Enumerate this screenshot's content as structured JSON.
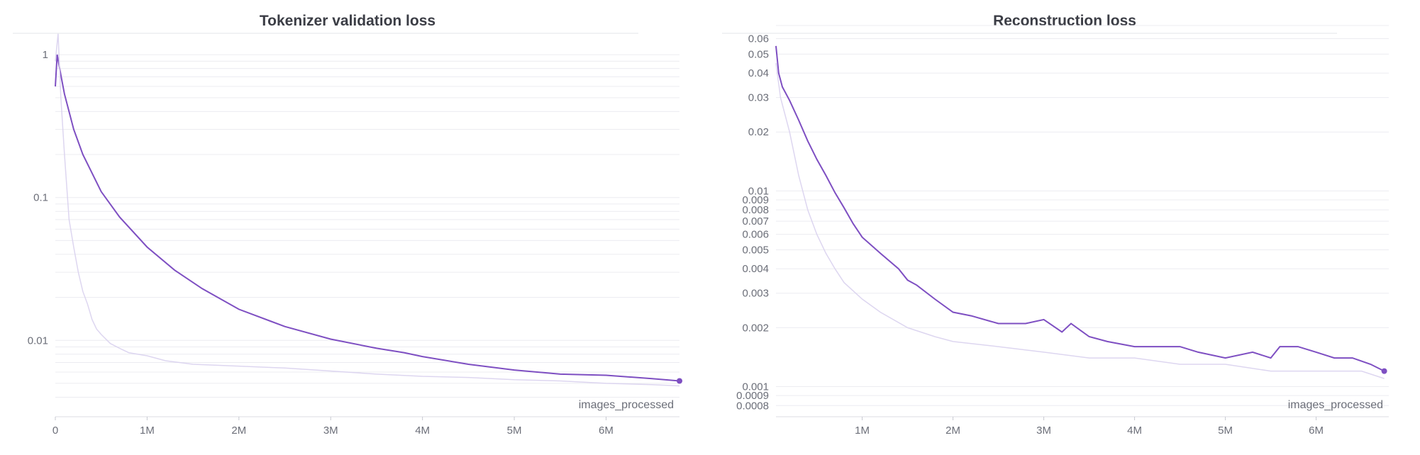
{
  "chart_data": [
    {
      "type": "line",
      "title": "Tokenizer validation loss",
      "xlabel": "images_processed",
      "ylabel": "",
      "yscale": "log",
      "xlim": [
        0,
        6800000
      ],
      "ylim": [
        0.0032,
        1.6
      ],
      "x_ticks": [
        {
          "value": 0,
          "label": "0"
        },
        {
          "value": 1000000,
          "label": "1M"
        },
        {
          "value": 2000000,
          "label": "2M"
        },
        {
          "value": 3000000,
          "label": "3M"
        },
        {
          "value": 4000000,
          "label": "4M"
        },
        {
          "value": 5000000,
          "label": "5M"
        },
        {
          "value": 6000000,
          "label": "6M"
        }
      ],
      "y_ticks": [
        {
          "value": 1,
          "label": "1"
        },
        {
          "value": 0.1,
          "label": "0.1"
        },
        {
          "value": 0.01,
          "label": "0.01"
        }
      ],
      "grid": true,
      "accent_color": "#7e4fc2",
      "raw_color": "#d9d2ee",
      "series": [
        {
          "role": "smoothed",
          "x": [
            0,
            20000,
            60000,
            100000,
            200000,
            300000,
            500000,
            700000,
            1000000,
            1300000,
            1600000,
            2000000,
            2500000,
            3000000,
            3500000,
            3800000,
            4000000,
            4500000,
            5000000,
            5500000,
            6000000,
            6500000,
            6800000
          ],
          "y": [
            0.6,
            1.0,
            0.72,
            0.53,
            0.3,
            0.2,
            0.11,
            0.073,
            0.045,
            0.031,
            0.023,
            0.0165,
            0.0125,
            0.0102,
            0.0088,
            0.0082,
            0.0077,
            0.0068,
            0.0062,
            0.0058,
            0.0057,
            0.0054,
            0.0052
          ]
        },
        {
          "role": "raw",
          "x": [
            0,
            30000,
            60000,
            100000,
            150000,
            200000,
            250000,
            300000,
            350000,
            400000,
            450000,
            500000,
            600000,
            700000,
            800000,
            1000000,
            1200000,
            1500000,
            2000000,
            2500000,
            3000000,
            3500000,
            4000000,
            4500000,
            5000000,
            5500000,
            6000000,
            6500000,
            6800000
          ],
          "y": [
            0.9,
            1.4,
            0.5,
            0.2,
            0.07,
            0.045,
            0.03,
            0.022,
            0.018,
            0.014,
            0.012,
            0.011,
            0.0095,
            0.0088,
            0.0082,
            0.0078,
            0.0072,
            0.0068,
            0.0066,
            0.0064,
            0.0061,
            0.0058,
            0.0056,
            0.0055,
            0.0053,
            0.0052,
            0.005,
            0.0049,
            0.0048
          ]
        }
      ]
    },
    {
      "type": "line",
      "title": "Reconstruction loss",
      "xlabel": "images_processed",
      "ylabel": "",
      "yscale": "log",
      "xlim": [
        50000,
        6800000
      ],
      "ylim": [
        0.00075,
        0.07
      ],
      "x_ticks": [
        {
          "value": 1000000,
          "label": "1M"
        },
        {
          "value": 2000000,
          "label": "2M"
        },
        {
          "value": 3000000,
          "label": "3M"
        },
        {
          "value": 4000000,
          "label": "4M"
        },
        {
          "value": 5000000,
          "label": "5M"
        },
        {
          "value": 6000000,
          "label": "6M"
        }
      ],
      "y_ticks": [
        {
          "value": 0.06,
          "label": "0.06"
        },
        {
          "value": 0.05,
          "label": "0.05"
        },
        {
          "value": 0.04,
          "label": "0.04"
        },
        {
          "value": 0.03,
          "label": "0.03"
        },
        {
          "value": 0.02,
          "label": "0.02"
        },
        {
          "value": 0.01,
          "label": "0.01"
        },
        {
          "value": 0.009,
          "label": "0.009"
        },
        {
          "value": 0.008,
          "label": "0.008"
        },
        {
          "value": 0.007,
          "label": "0.007"
        },
        {
          "value": 0.006,
          "label": "0.006"
        },
        {
          "value": 0.005,
          "label": "0.005"
        },
        {
          "value": 0.004,
          "label": "0.004"
        },
        {
          "value": 0.003,
          "label": "0.003"
        },
        {
          "value": 0.002,
          "label": "0.002"
        },
        {
          "value": 0.001,
          "label": "0.001"
        },
        {
          "value": 0.0009,
          "label": "0.0009"
        },
        {
          "value": 0.0008,
          "label": "0.0008"
        }
      ],
      "grid": true,
      "accent_color": "#7e4fc2",
      "raw_color": "#d9d2ee",
      "series": [
        {
          "role": "smoothed",
          "x": [
            50000,
            80000,
            120000,
            200000,
            300000,
            400000,
            500000,
            600000,
            700000,
            800000,
            900000,
            1000000,
            1200000,
            1400000,
            1500000,
            1600000,
            1800000,
            2000000,
            2200000,
            2500000,
            2800000,
            3000000,
            3200000,
            3300000,
            3500000,
            3700000,
            4000000,
            4200000,
            4500000,
            4700000,
            5000000,
            5300000,
            5500000,
            5600000,
            5800000,
            6000000,
            6200000,
            6400000,
            6600000,
            6750000
          ],
          "y": [
            0.055,
            0.04,
            0.034,
            0.029,
            0.023,
            0.018,
            0.0145,
            0.012,
            0.0098,
            0.0082,
            0.0068,
            0.0058,
            0.0048,
            0.004,
            0.0035,
            0.0033,
            0.0028,
            0.0024,
            0.0023,
            0.0021,
            0.0021,
            0.0022,
            0.0019,
            0.0021,
            0.0018,
            0.0017,
            0.0016,
            0.0016,
            0.0016,
            0.0015,
            0.0014,
            0.0015,
            0.0014,
            0.0016,
            0.0016,
            0.0015,
            0.0014,
            0.0014,
            0.0013,
            0.0012
          ]
        },
        {
          "role": "raw",
          "x": [
            50000,
            100000,
            200000,
            300000,
            400000,
            500000,
            600000,
            700000,
            800000,
            1000000,
            1200000,
            1500000,
            1800000,
            2000000,
            2500000,
            3000000,
            3500000,
            4000000,
            4500000,
            5000000,
            5500000,
            6000000,
            6500000,
            6750000
          ],
          "y": [
            0.045,
            0.03,
            0.02,
            0.012,
            0.008,
            0.006,
            0.0048,
            0.004,
            0.0034,
            0.0028,
            0.0024,
            0.002,
            0.0018,
            0.0017,
            0.0016,
            0.0015,
            0.0014,
            0.0014,
            0.0013,
            0.0013,
            0.0012,
            0.0012,
            0.0012,
            0.0011
          ]
        }
      ]
    }
  ]
}
